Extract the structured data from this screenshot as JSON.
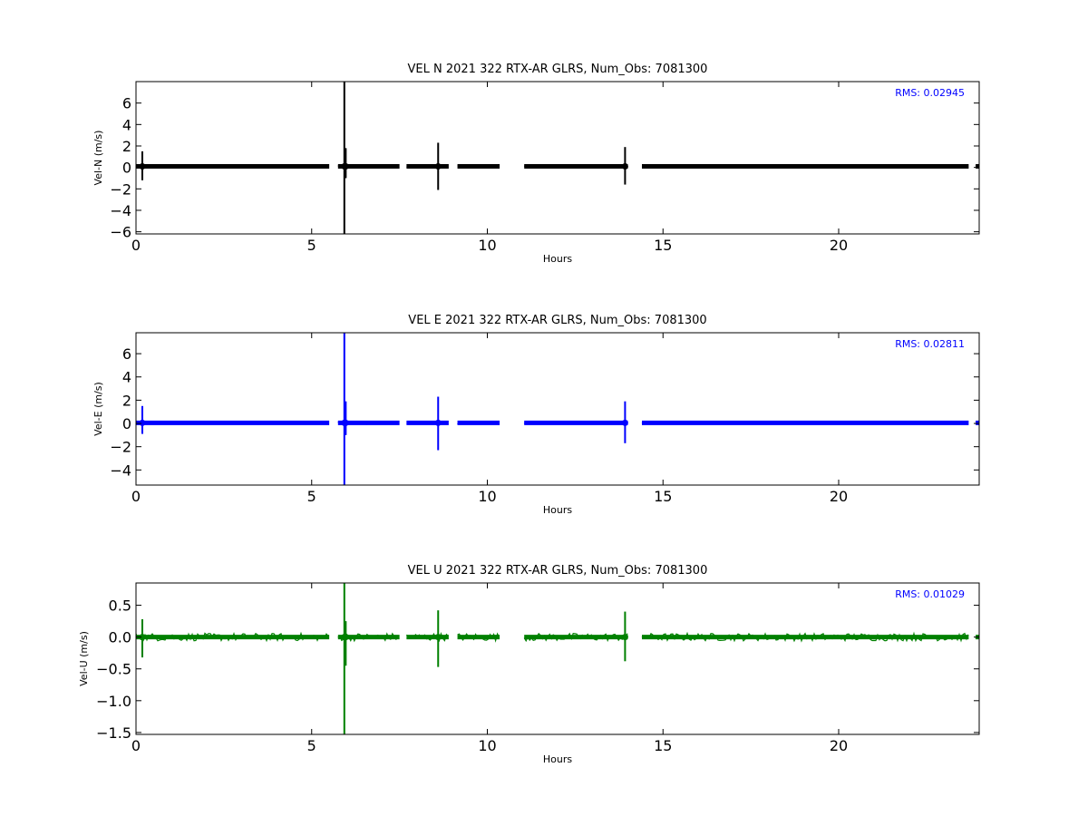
{
  "chart_data": [
    {
      "type": "scatter",
      "title": "VEL N 2021 322 RTX-AR  GLRS, Num_Obs: 7081300",
      "xlabel": "Hours",
      "ylabel": "Vel-N (m/s)",
      "xlim": [
        0,
        24
      ],
      "ylim": [
        -6.2,
        8
      ],
      "xticks": [
        0,
        5,
        10,
        15,
        20
      ],
      "yticks": [
        -6,
        -4,
        -2,
        0,
        2,
        4,
        6
      ],
      "ytick_labels": [
        "−6",
        "−4",
        "−2",
        "0",
        "2",
        "4",
        "6"
      ],
      "color": "#000000",
      "annotation": "RMS:  0.02945",
      "annotation_color": "#0000ff",
      "baseline": 0.1,
      "noise": 0.12,
      "segments": [
        [
          0.0,
          5.5
        ],
        [
          5.75,
          7.5
        ],
        [
          7.7,
          8.9
        ],
        [
          9.15,
          10.35
        ],
        [
          11.05,
          14.0
        ],
        [
          14.4,
          23.7
        ],
        [
          23.9,
          24.0
        ]
      ],
      "spikes": [
        {
          "x": 0.18,
          "ymin": -1.2,
          "ymax": 1.5
        },
        {
          "x": 5.93,
          "ymin": -6.2,
          "ymax": 8.0
        },
        {
          "x": 5.97,
          "ymin": -1.0,
          "ymax": 1.8
        },
        {
          "x": 8.6,
          "ymin": -2.1,
          "ymax": 2.3
        },
        {
          "x": 13.92,
          "ymin": -1.6,
          "ymax": 1.9
        }
      ]
    },
    {
      "type": "scatter",
      "title": "VEL E 2021 322 RTX-AR  GLRS, Num_Obs: 7081300",
      "xlabel": "Hours",
      "ylabel": "Vel-E (m/s)",
      "xlim": [
        0,
        24
      ],
      "ylim": [
        -5.3,
        7.8
      ],
      "xticks": [
        0,
        5,
        10,
        15,
        20
      ],
      "yticks": [
        -4,
        -2,
        0,
        2,
        4,
        6
      ],
      "ytick_labels": [
        "−4",
        "−2",
        "0",
        "2",
        "4",
        "6"
      ],
      "color": "#0000ff",
      "annotation": "RMS:  0.02811",
      "annotation_color": "#0000ff",
      "baseline": 0.05,
      "noise": 0.12,
      "segments": [
        [
          0.0,
          5.5
        ],
        [
          5.75,
          7.5
        ],
        [
          7.7,
          8.9
        ],
        [
          9.15,
          10.35
        ],
        [
          11.05,
          14.0
        ],
        [
          14.4,
          23.7
        ],
        [
          23.9,
          24.0
        ]
      ],
      "spikes": [
        {
          "x": 0.18,
          "ymin": -0.9,
          "ymax": 1.5
        },
        {
          "x": 5.93,
          "ymin": -5.3,
          "ymax": 7.8
        },
        {
          "x": 5.97,
          "ymin": -1.0,
          "ymax": 1.9
        },
        {
          "x": 8.6,
          "ymin": -2.3,
          "ymax": 2.3
        },
        {
          "x": 13.92,
          "ymin": -1.7,
          "ymax": 1.9
        }
      ]
    },
    {
      "type": "scatter",
      "title": "VEL U 2021 322 RTX-AR  GLRS, Num_Obs: 7081300",
      "xlabel": "Hours",
      "ylabel": "Vel-U (m/s)",
      "xlim": [
        0,
        24
      ],
      "ylim": [
        -1.53,
        0.85
      ],
      "xticks": [
        0,
        5,
        10,
        15,
        20
      ],
      "yticks": [
        -1.5,
        -1.0,
        -0.5,
        0.0,
        0.5
      ],
      "ytick_labels": [
        "−1.5",
        "−1.0",
        "−0.5",
        "0.0",
        "0.5"
      ],
      "color": "#008000",
      "annotation": "RMS:  0.01029",
      "annotation_color": "#0000ff",
      "baseline": 0.0,
      "noise": 0.06,
      "segments": [
        [
          0.0,
          5.5
        ],
        [
          5.75,
          7.5
        ],
        [
          7.7,
          8.9
        ],
        [
          9.15,
          10.35
        ],
        [
          11.05,
          14.0
        ],
        [
          14.4,
          23.7
        ],
        [
          23.9,
          24.0
        ]
      ],
      "spikes": [
        {
          "x": 0.18,
          "ymin": -0.32,
          "ymax": 0.28
        },
        {
          "x": 5.93,
          "ymin": -1.53,
          "ymax": 0.85
        },
        {
          "x": 5.97,
          "ymin": -0.45,
          "ymax": 0.25
        },
        {
          "x": 8.6,
          "ymin": -0.47,
          "ymax": 0.42
        },
        {
          "x": 13.92,
          "ymin": -0.38,
          "ymax": 0.4
        }
      ]
    }
  ]
}
